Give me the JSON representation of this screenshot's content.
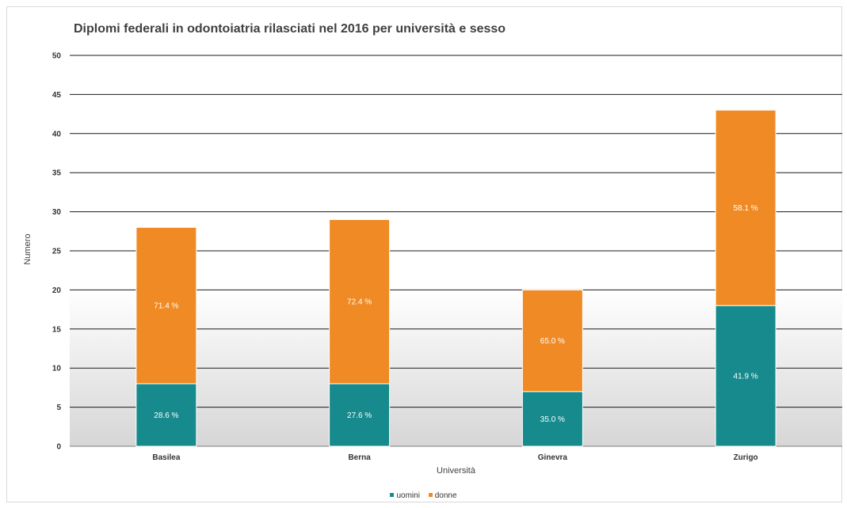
{
  "chart_data": {
    "type": "bar",
    "stacked": true,
    "title": "Diplomi federali in odontoiatria rilasciati nel 2016 per università e sesso",
    "xlabel": "Università",
    "ylabel": "Numero",
    "ylim": [
      0,
      50
    ],
    "yticks": [
      "0",
      "5",
      "10",
      "15",
      "20",
      "25",
      "30",
      "35",
      "40",
      "45",
      "50"
    ],
    "categories": [
      "Basilea",
      "Berna",
      "Ginevra",
      "Zurigo"
    ],
    "series": [
      {
        "name": "uomini",
        "color": "#168a8c",
        "values": [
          8,
          8,
          7,
          18
        ],
        "labels": [
          "28.6 %",
          "27.6 %",
          "35.0 %",
          "41.9 %"
        ]
      },
      {
        "name": "donne",
        "color": "#f08a24",
        "values": [
          20,
          21,
          13,
          25
        ],
        "labels": [
          "71.4 %",
          "72.4 %",
          "65.0 %",
          "58.1 %"
        ]
      }
    ],
    "grid": true,
    "legend_position": "bottom"
  }
}
